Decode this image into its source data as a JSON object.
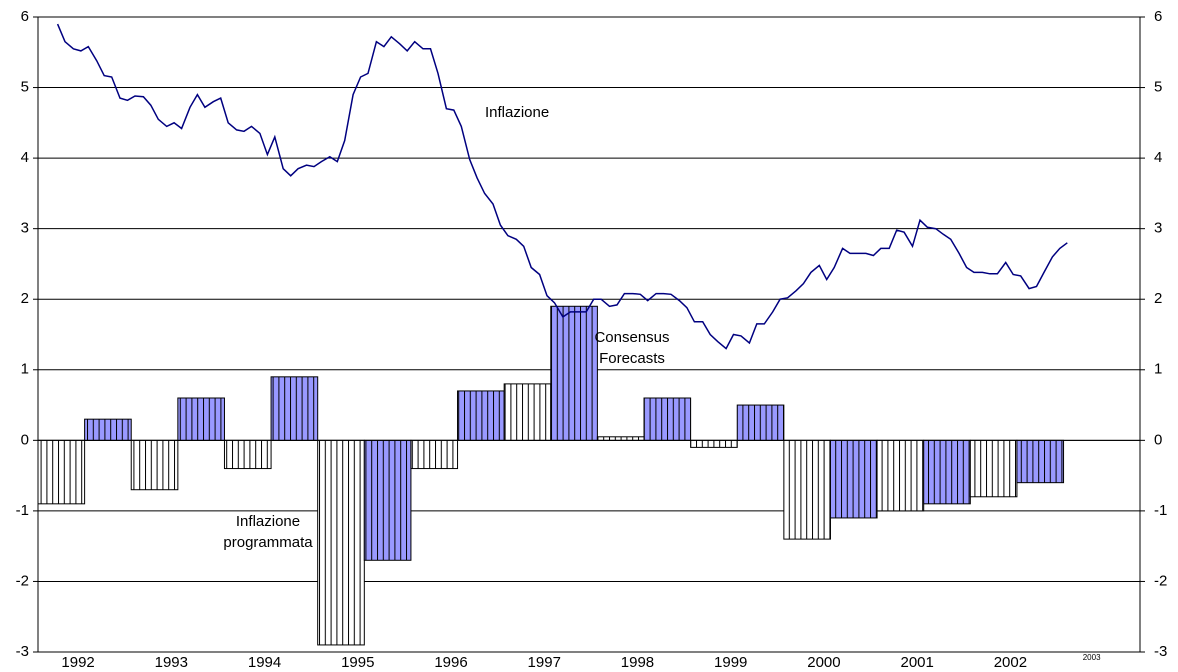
{
  "chart_data": {
    "type": "bar-line",
    "xlim": [
      1991.57,
      2003.39
    ],
    "xticks": [
      1992,
      1993,
      1994,
      1995,
      1996,
      1997,
      1998,
      1999,
      2000,
      2001,
      2002,
      2003
    ],
    "ylim": [
      -3,
      6
    ],
    "yticks": [
      -3,
      -2,
      -1,
      0,
      1,
      2,
      3,
      4,
      5,
      6
    ],
    "y2lim": [
      -3,
      6
    ],
    "y2ticks": [
      -3,
      -2,
      -1,
      0,
      1,
      2,
      3,
      4,
      5,
      6
    ],
    "grid": true,
    "bars": {
      "values": [
        -0.9,
        0.3,
        -0.7,
        0.6,
        -0.4,
        0.9,
        -2.9,
        -1.7,
        -0.4,
        0.7,
        0.8,
        1.9,
        0.05,
        0.6,
        -0.1,
        0.5,
        -1.4,
        -1.1,
        -1.0,
        -0.9,
        -0.8,
        -0.6
      ],
      "colors": [
        "#ffffff",
        "#9999ff",
        "#ffffff",
        "#9999ff",
        "#ffffff",
        "#9999ff",
        "#ffffff",
        "#9999ff",
        "#ffffff",
        "#9999ff",
        "#ffffff",
        "#9999ff",
        "#ffffff",
        "#9999ff",
        "#ffffff",
        "#9999ff",
        "#ffffff",
        "#9999ff",
        "#ffffff",
        "#9999ff",
        "#ffffff",
        "#9999ff"
      ]
    },
    "line": {
      "color": "#000080",
      "x": [
        1991.78,
        1991.86,
        1991.95,
        1992.03,
        1992.11,
        1992.2,
        1992.28,
        1992.36,
        1992.45,
        1992.53,
        1992.61,
        1992.7,
        1992.78,
        1992.86,
        1992.95,
        1993.03,
        1993.11,
        1993.2,
        1993.28,
        1993.36,
        1993.45,
        1993.53,
        1993.61,
        1993.7,
        1993.78,
        1993.86,
        1993.95,
        1994.03,
        1994.11,
        1994.2,
        1994.28,
        1994.36,
        1994.45,
        1994.53,
        1994.61,
        1994.7,
        1994.78,
        1994.86,
        1994.95,
        1995.03,
        1995.11,
        1995.2,
        1995.28,
        1995.36,
        1995.45,
        1995.53,
        1995.61,
        1995.7,
        1995.78,
        1995.86,
        1995.95,
        1996.03,
        1996.11,
        1996.2,
        1996.28,
        1996.36,
        1996.45,
        1996.53,
        1996.61,
        1996.7,
        1996.78,
        1996.86,
        1996.95,
        1997.03,
        1997.11,
        1997.2,
        1997.28,
        1997.36,
        1997.45,
        1997.53,
        1997.61,
        1997.7,
        1997.78,
        1997.86,
        1997.95,
        1998.03,
        1998.11,
        1998.2,
        1998.28,
        1998.36,
        1998.45,
        1998.53,
        1998.61,
        1998.7,
        1998.78,
        1998.86,
        1998.95,
        1999.03,
        1999.11,
        1999.2,
        1999.28,
        1999.36,
        1999.45,
        1999.53,
        1999.61,
        1999.7,
        1999.78,
        1999.86,
        1999.95,
        2000.03,
        2000.11,
        2000.2,
        2000.28,
        2000.36,
        2000.45,
        2000.53,
        2000.61,
        2000.7,
        2000.78,
        2000.86,
        2000.95,
        2001.03,
        2001.11,
        2001.2,
        2001.28,
        2001.36,
        2001.45,
        2001.53,
        2001.61,
        2001.7,
        2001.78,
        2001.86,
        2001.95,
        2002.03,
        2002.11,
        2002.2,
        2002.28,
        2002.36,
        2002.45,
        2002.53,
        2002.61
      ],
      "values": [
        5.9,
        5.65,
        5.55,
        5.52,
        5.58,
        5.38,
        5.17,
        5.15,
        4.85,
        4.82,
        4.88,
        4.87,
        4.75,
        4.55,
        4.45,
        4.5,
        4.42,
        4.72,
        4.9,
        4.72,
        4.8,
        4.85,
        4.5,
        4.4,
        4.38,
        4.45,
        4.35,
        4.05,
        4.3,
        3.85,
        3.75,
        3.85,
        3.9,
        3.88,
        3.95,
        4.02,
        3.95,
        4.25,
        4.9,
        5.15,
        5.2,
        5.65,
        5.58,
        5.72,
        5.62,
        5.52,
        5.65,
        5.55,
        5.55,
        5.2,
        4.7,
        4.68,
        4.45,
        3.98,
        3.72,
        3.5,
        3.35,
        3.05,
        2.9,
        2.85,
        2.75,
        2.45,
        2.35,
        2.05,
        1.95,
        1.75,
        1.82,
        1.82,
        1.82,
        2.0,
        2.0,
        1.9,
        1.92,
        2.08,
        2.08,
        2.07,
        1.98,
        2.08,
        2.08,
        2.07,
        1.98,
        1.88,
        1.68,
        1.68,
        1.5,
        1.4,
        1.3,
        1.5,
        1.48,
        1.38,
        1.65,
        1.65,
        1.82,
        2.0,
        2.02,
        2.12,
        2.22,
        2.38,
        2.48,
        2.28,
        2.45,
        2.72,
        2.65,
        2.65,
        2.65,
        2.62,
        2.72,
        2.72,
        2.98,
        2.95,
        2.75,
        3.12,
        3.02,
        3.0,
        2.92,
        2.85,
        2.65,
        2.45,
        2.38,
        2.38,
        2.36,
        2.36,
        2.52,
        2.35,
        2.33,
        2.15,
        2.18,
        2.38,
        2.6,
        2.72,
        2.8
      ]
    },
    "annotations": [
      [
        "Inflazione"
      ],
      [
        "Consensus",
        "Forecasts"
      ],
      [
        "Inflazione",
        "programmata"
      ]
    ]
  }
}
